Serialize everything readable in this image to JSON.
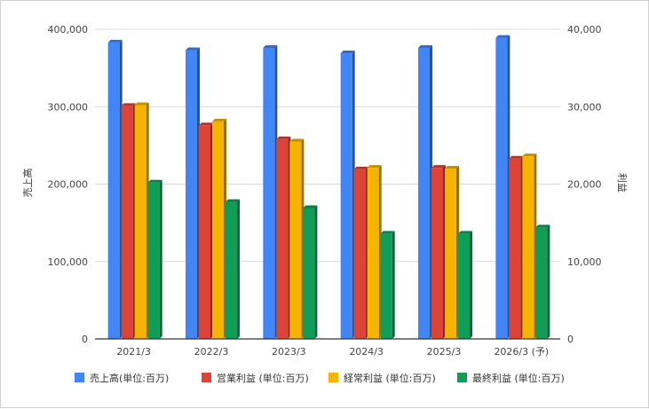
{
  "chart_data": {
    "type": "bar",
    "categories": [
      "2021/3",
      "2022/3",
      "2023/3",
      "2024/3",
      "2025/3",
      "2026/3 (予)"
    ],
    "series": [
      {
        "name": "売上高(単位:百万)",
        "axis": "left",
        "color": "#4285f4",
        "values": [
          383000,
          373000,
          376000,
          369000,
          376000,
          389000
        ]
      },
      {
        "name": "営業利益 (単位:百万)",
        "axis": "right",
        "color": "#db4437",
        "values": [
          30100,
          27600,
          25800,
          21900,
          22100,
          23300
        ]
      },
      {
        "name": "経常利益 (単位:百万)",
        "axis": "right",
        "color": "#f4b400",
        "values": [
          30200,
          28100,
          25500,
          22100,
          22000,
          23600
        ]
      },
      {
        "name": "最終利益 (単位:百万)",
        "axis": "right",
        "color": "#0f9d58",
        "values": [
          20200,
          17700,
          16900,
          13600,
          13600,
          14400
        ]
      }
    ],
    "ylabel_left": "売上高",
    "ylabel_right": "利益",
    "ylim_left": [
      0,
      400000
    ],
    "ylim_right": [
      0,
      40000
    ],
    "yticks_left": [
      "0",
      "100,000",
      "200,000",
      "300,000",
      "400,000"
    ],
    "yticks_right": [
      "0",
      "10,000",
      "20,000",
      "30,000",
      "40,000"
    ],
    "grid": true,
    "legend_position": "bottom"
  }
}
